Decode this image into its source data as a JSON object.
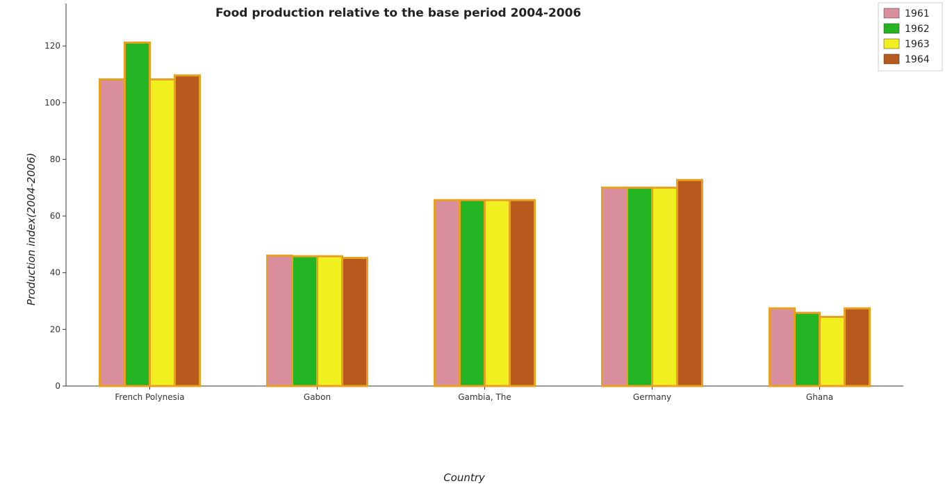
{
  "chart_data": {
    "type": "bar",
    "title": "Food production relative to the base period 2004-2006",
    "xlabel": "Country",
    "ylabel": "Production index(2004-2006)",
    "categories": [
      "French Polynesia",
      "Gabon",
      "Gambia, The",
      "Germany",
      "Ghana"
    ],
    "series": [
      {
        "name": "1961",
        "color": "#d98f9d",
        "values": [
          108.2,
          46.0,
          65.6,
          70.0,
          27.4
        ]
      },
      {
        "name": "1962",
        "color": "#22b422",
        "values": [
          121.2,
          45.8,
          65.6,
          70.0,
          25.8
        ]
      },
      {
        "name": "1963",
        "color": "#f0f020",
        "values": [
          108.2,
          45.8,
          65.6,
          70.0,
          24.4
        ]
      },
      {
        "name": "1964",
        "color": "#b85a1e",
        "values": [
          109.6,
          45.2,
          65.6,
          72.7,
          27.4
        ]
      }
    ],
    "ylim": [
      0,
      135
    ],
    "yticks": [
      0,
      20,
      40,
      60,
      80,
      100,
      120
    ],
    "grid": false,
    "legend": "top-right"
  }
}
